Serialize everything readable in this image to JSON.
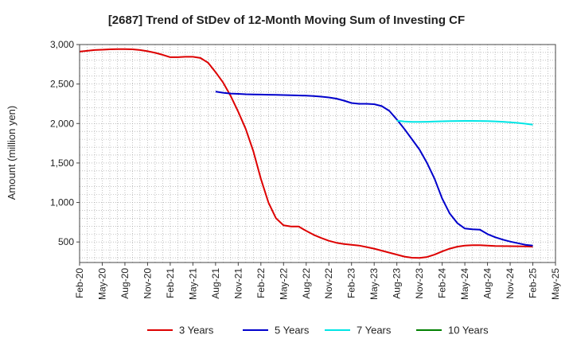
{
  "chart_data": {
    "type": "line",
    "title": "[2687]  Trend of StDev of 12-Month Moving Sum of Investing CF",
    "ylabel": "Amount (million yen)",
    "xlabel": "",
    "ylim": [
      240,
      3000
    ],
    "yticks": [
      500,
      1000,
      1500,
      2000,
      2500,
      3000
    ],
    "ytick_labels": [
      "500",
      "1,000",
      "1,500",
      "2,000",
      "2,500",
      "3,000"
    ],
    "xlim": [
      "2020-02",
      "2025-05"
    ],
    "xtick_labels": [
      "Feb-20",
      "May-20",
      "Aug-20",
      "Nov-20",
      "Feb-21",
      "May-21",
      "Aug-21",
      "Nov-21",
      "Feb-22",
      "May-22",
      "Aug-22",
      "Nov-22",
      "Feb-23",
      "May-23",
      "Aug-23",
      "Nov-23",
      "Feb-24",
      "May-24",
      "Aug-24",
      "Nov-24",
      "Feb-25",
      "May-25"
    ],
    "grid": true,
    "legend_position": "bottom",
    "series": [
      {
        "name": "3 Years",
        "color": "#dd0000",
        "x": [
          "2020-02",
          "2020-03",
          "2020-04",
          "2020-05",
          "2020-06",
          "2020-07",
          "2020-08",
          "2020-09",
          "2020-10",
          "2020-11",
          "2020-12",
          "2021-01",
          "2021-02",
          "2021-03",
          "2021-04",
          "2021-05",
          "2021-06",
          "2021-07",
          "2021-08",
          "2021-09",
          "2021-10",
          "2021-11",
          "2021-12",
          "2022-01",
          "2022-02",
          "2022-03",
          "2022-04",
          "2022-05",
          "2022-06",
          "2022-07",
          "2022-08",
          "2022-09",
          "2022-10",
          "2022-11",
          "2022-12",
          "2023-01",
          "2023-02",
          "2023-03",
          "2023-04",
          "2023-05",
          "2023-06",
          "2023-07",
          "2023-08",
          "2023-09",
          "2023-10",
          "2023-11",
          "2023-12",
          "2024-01",
          "2024-02",
          "2024-03",
          "2024-04",
          "2024-05",
          "2024-06",
          "2024-07",
          "2024-08",
          "2024-09",
          "2024-10",
          "2024-11",
          "2024-12",
          "2025-01",
          "2025-02"
        ],
        "values": [
          2910,
          2920,
          2930,
          2935,
          2940,
          2942,
          2942,
          2940,
          2930,
          2915,
          2895,
          2870,
          2840,
          2840,
          2845,
          2845,
          2830,
          2770,
          2650,
          2520,
          2350,
          2150,
          1930,
          1650,
          1300,
          1000,
          800,
          710,
          695,
          695,
          640,
          590,
          550,
          515,
          490,
          475,
          465,
          455,
          435,
          415,
          390,
          365,
          340,
          315,
          300,
          298,
          310,
          340,
          380,
          415,
          440,
          455,
          460,
          460,
          455,
          450,
          448,
          446,
          445,
          443,
          440
        ]
      },
      {
        "name": "5 Years",
        "color": "#0000cc",
        "x": [
          "2021-08",
          "2021-09",
          "2021-10",
          "2021-11",
          "2021-12",
          "2022-01",
          "2022-02",
          "2022-03",
          "2022-04",
          "2022-05",
          "2022-06",
          "2022-07",
          "2022-08",
          "2022-09",
          "2022-10",
          "2022-11",
          "2022-12",
          "2023-01",
          "2023-02",
          "2023-03",
          "2023-04",
          "2023-05",
          "2023-06",
          "2023-07",
          "2023-08",
          "2023-09",
          "2023-10",
          "2023-11",
          "2023-12",
          "2024-01",
          "2024-02",
          "2024-03",
          "2024-04",
          "2024-05",
          "2024-06",
          "2024-07",
          "2024-08",
          "2024-09",
          "2024-10",
          "2024-11",
          "2024-12",
          "2025-01",
          "2025-02"
        ],
        "values": [
          2405,
          2390,
          2380,
          2375,
          2370,
          2368,
          2366,
          2364,
          2362,
          2360,
          2358,
          2355,
          2352,
          2348,
          2340,
          2330,
          2315,
          2290,
          2260,
          2250,
          2250,
          2245,
          2220,
          2160,
          2050,
          1930,
          1800,
          1670,
          1500,
          1300,
          1050,
          860,
          740,
          670,
          660,
          655,
          600,
          560,
          530,
          505,
          485,
          465,
          455
        ]
      },
      {
        "name": "7 Years",
        "color": "#00e5e5",
        "x": [
          "2023-08",
          "2023-09",
          "2023-10",
          "2023-11",
          "2023-12",
          "2024-01",
          "2024-02",
          "2024-03",
          "2024-04",
          "2024-05",
          "2024-06",
          "2024-07",
          "2024-08",
          "2024-09",
          "2024-10",
          "2024-11",
          "2024-12",
          "2025-01",
          "2025-02"
        ],
        "values": [
          2035,
          2025,
          2020,
          2020,
          2022,
          2025,
          2028,
          2030,
          2032,
          2033,
          2033,
          2032,
          2030,
          2027,
          2022,
          2016,
          2008,
          1998,
          1985
        ]
      },
      {
        "name": "10 Years",
        "color": "#008000",
        "x": [],
        "values": []
      }
    ]
  }
}
